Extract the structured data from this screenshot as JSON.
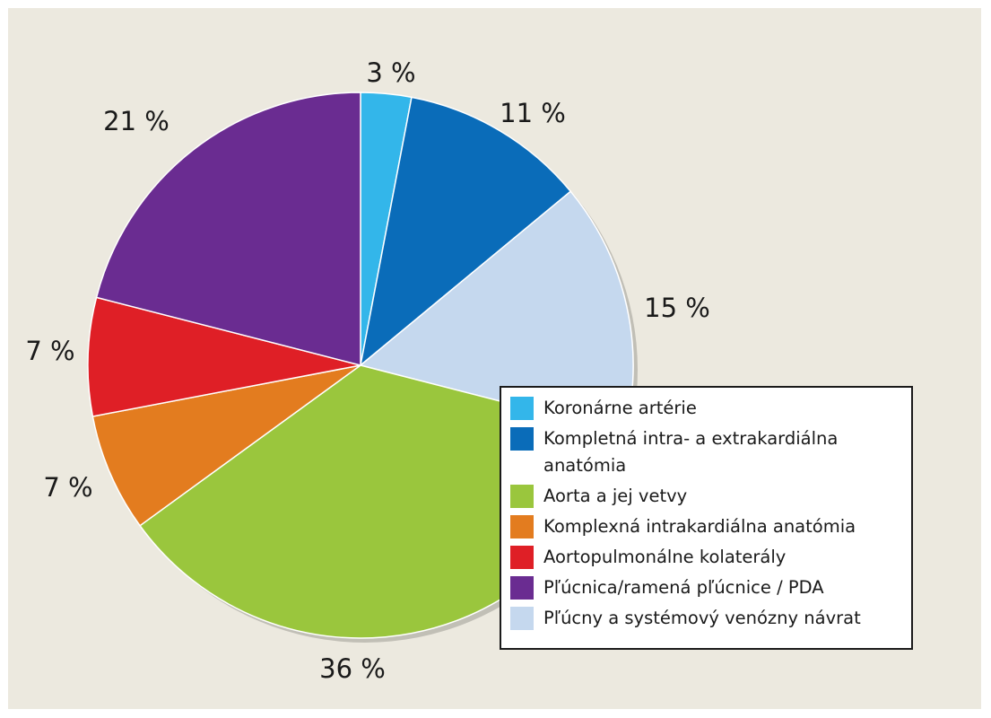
{
  "chart_data": {
    "type": "pie",
    "start_angle": "12 o'clock",
    "direction": "clockwise",
    "slices": [
      {
        "label": "Koronárne artérie",
        "value": 3,
        "value_label": "3 %",
        "color": "#33b6ea"
      },
      {
        "label": "Kompletná intra- a extrakardiálna anatómia",
        "value": 11,
        "value_label": "11 %",
        "color": "#0a6cb9"
      },
      {
        "label": "Pľúcny a systémový venózny návrat",
        "value": 15,
        "value_label": "15 %",
        "color": "#c5d8ee"
      },
      {
        "label": "Aorta a jej vetvy",
        "value": 36,
        "value_label": "36 %",
        "color": "#9ac63d"
      },
      {
        "label": "Komplexná intrakardiálna anatómia",
        "value": 7,
        "value_label": "7 %",
        "color": "#e37c1f"
      },
      {
        "label": "Aortopulmonálne kolaterály",
        "value": 7,
        "value_label": "7 %",
        "color": "#df1f26"
      },
      {
        "label": "Pľúcnica/ramená pľúcnice / PDA",
        "value": 21,
        "value_label": "21 %",
        "color": "#6a2c91"
      }
    ],
    "legend": {
      "placement": "bottom-right",
      "entries": [
        {
          "label": "Koronárne artérie",
          "color": "#33b6ea"
        },
        {
          "label": "Kompletná intra- a extrakardiálna anatómia",
          "color": "#0a6cb9"
        },
        {
          "label": "Aorta a jej vetvy",
          "color": "#9ac63d"
        },
        {
          "label": "Komplexná intrakardiálna anatómia",
          "color": "#e37c1f"
        },
        {
          "label": "Aortopulmonálne kolaterály",
          "color": "#df1f26"
        },
        {
          "label": "Pľúcnica/ramená pľúcnice / PDA",
          "color": "#6a2c91"
        },
        {
          "label": "Pľúcny a systémový venózny návrat",
          "color": "#c5d8ee"
        }
      ]
    }
  },
  "colors": {
    "background": "#ece9df",
    "legend_background": "#ffffff",
    "text": "#1a1a1a"
  }
}
